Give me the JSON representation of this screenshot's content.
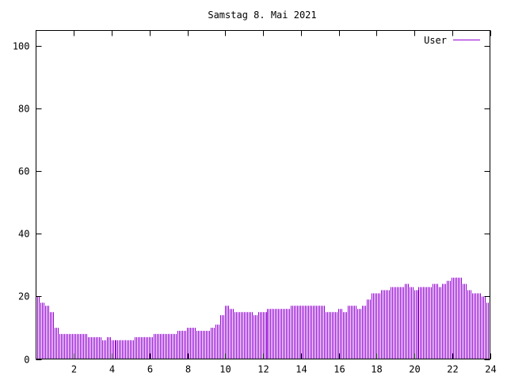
{
  "chart_data": {
    "type": "bar",
    "title": "Samstag 8. Mai 2021",
    "xlabel": "",
    "ylabel": "",
    "xlim": [
      0,
      24
    ],
    "ylim": [
      0,
      105
    ],
    "x_ticks": [
      2,
      4,
      6,
      8,
      10,
      12,
      14,
      16,
      18,
      20,
      22,
      24
    ],
    "y_ticks": [
      0,
      20,
      40,
      60,
      80,
      100
    ],
    "legend_position": "top-right",
    "grid": false,
    "series": [
      {
        "name": "User",
        "color": "#9400d3",
        "points": [
          [
            0.0,
            20
          ],
          [
            0.25,
            18
          ],
          [
            0.5,
            17
          ],
          [
            0.75,
            15
          ],
          [
            1.0,
            10
          ],
          [
            1.25,
            8
          ],
          [
            1.5,
            8
          ],
          [
            1.75,
            8
          ],
          [
            2.0,
            8
          ],
          [
            2.25,
            8
          ],
          [
            2.5,
            8
          ],
          [
            2.75,
            7
          ],
          [
            3.0,
            7
          ],
          [
            3.25,
            7
          ],
          [
            3.5,
            6
          ],
          [
            3.75,
            7
          ],
          [
            4.0,
            6
          ],
          [
            4.25,
            6
          ],
          [
            4.5,
            6
          ],
          [
            4.75,
            6
          ],
          [
            5.0,
            6
          ],
          [
            5.25,
            7
          ],
          [
            5.5,
            7
          ],
          [
            5.75,
            7
          ],
          [
            6.0,
            7
          ],
          [
            6.25,
            8
          ],
          [
            6.5,
            8
          ],
          [
            6.75,
            8
          ],
          [
            7.0,
            8
          ],
          [
            7.25,
            8
          ],
          [
            7.5,
            9
          ],
          [
            7.75,
            9
          ],
          [
            8.0,
            10
          ],
          [
            8.25,
            10
          ],
          [
            8.5,
            9
          ],
          [
            8.75,
            9
          ],
          [
            9.0,
            9
          ],
          [
            9.25,
            10
          ],
          [
            9.5,
            11
          ],
          [
            9.75,
            14
          ],
          [
            10.0,
            17
          ],
          [
            10.25,
            16
          ],
          [
            10.5,
            15
          ],
          [
            10.75,
            15
          ],
          [
            11.0,
            15
          ],
          [
            11.25,
            15
          ],
          [
            11.5,
            14
          ],
          [
            11.75,
            15
          ],
          [
            12.0,
            15
          ],
          [
            12.25,
            16
          ],
          [
            12.5,
            16
          ],
          [
            12.75,
            16
          ],
          [
            13.0,
            16
          ],
          [
            13.25,
            16
          ],
          [
            13.5,
            17
          ],
          [
            13.75,
            17
          ],
          [
            14.0,
            17
          ],
          [
            14.25,
            17
          ],
          [
            14.5,
            17
          ],
          [
            14.75,
            17
          ],
          [
            15.0,
            17
          ],
          [
            15.25,
            15
          ],
          [
            15.5,
            15
          ],
          [
            15.75,
            15
          ],
          [
            16.0,
            16
          ],
          [
            16.25,
            15
          ],
          [
            16.5,
            17
          ],
          [
            16.75,
            17
          ],
          [
            17.0,
            16
          ],
          [
            17.25,
            17
          ],
          [
            17.5,
            19
          ],
          [
            17.75,
            21
          ],
          [
            18.0,
            21
          ],
          [
            18.25,
            22
          ],
          [
            18.5,
            22
          ],
          [
            18.75,
            23
          ],
          [
            19.0,
            23
          ],
          [
            19.25,
            23
          ],
          [
            19.5,
            24
          ],
          [
            19.75,
            23
          ],
          [
            20.0,
            22
          ],
          [
            20.25,
            23
          ],
          [
            20.5,
            23
          ],
          [
            20.75,
            23
          ],
          [
            21.0,
            24
          ],
          [
            21.25,
            23
          ],
          [
            21.5,
            24
          ],
          [
            21.75,
            25
          ],
          [
            22.0,
            26
          ],
          [
            22.25,
            26
          ],
          [
            22.5,
            24
          ],
          [
            22.75,
            22
          ],
          [
            23.0,
            21
          ],
          [
            23.25,
            21
          ],
          [
            23.5,
            20
          ],
          [
            23.75,
            18
          ]
        ]
      }
    ]
  }
}
